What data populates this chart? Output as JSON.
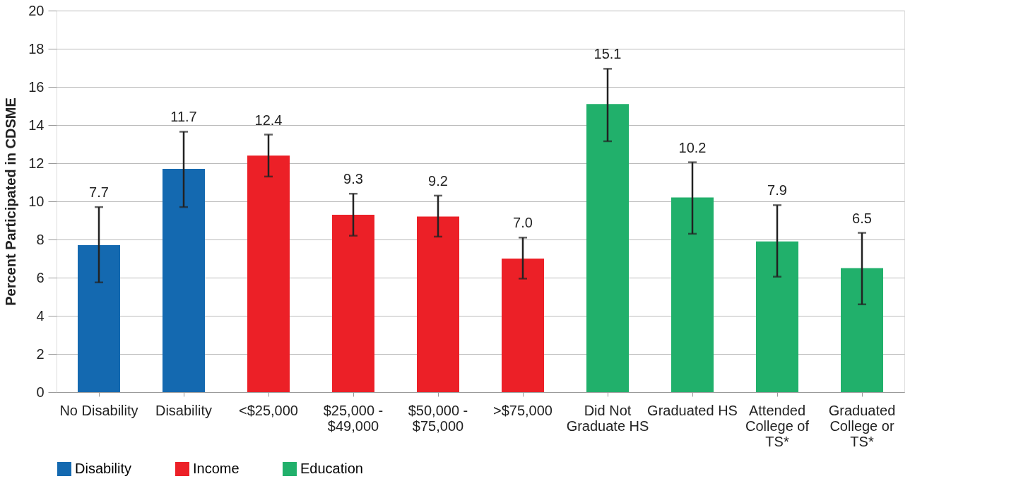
{
  "chart_data": {
    "type": "bar",
    "ylabel": "Percent Participated in CDSME",
    "categories": [
      "No Disability",
      "Disability",
      "<$25,000",
      "$25,000 - $49,000",
      "$50,000 - $75,000",
      ">$75,000",
      "Did Not Graduate HS",
      "Graduated HS",
      "Attended College of TS*",
      "Graduated College or TS*"
    ],
    "series": [
      {
        "name": "Disability",
        "color": "#1469b0",
        "values": [
          7.7,
          11.7,
          null,
          null,
          null,
          null,
          null,
          null,
          null,
          null
        ],
        "value_labels": [
          "7.7",
          "11.7",
          null,
          null,
          null,
          null,
          null,
          null,
          null,
          null
        ],
        "errors": [
          [
            5.75,
            9.7
          ],
          [
            9.7,
            13.65
          ],
          null,
          null,
          null,
          null,
          null,
          null,
          null,
          null
        ]
      },
      {
        "name": "Income",
        "color": "#ec2027",
        "values": [
          null,
          null,
          12.4,
          9.3,
          9.2,
          7.0,
          null,
          null,
          null,
          null
        ],
        "value_labels": [
          null,
          null,
          "12.4",
          "9.3",
          "9.2",
          "7.0",
          null,
          null,
          null,
          null
        ],
        "errors": [
          null,
          null,
          [
            11.3,
            13.5
          ],
          [
            8.2,
            10.4
          ],
          [
            8.15,
            10.3
          ],
          [
            5.95,
            8.1
          ],
          null,
          null,
          null,
          null
        ]
      },
      {
        "name": "Education",
        "color": "#21b06b",
        "values": [
          null,
          null,
          null,
          null,
          null,
          null,
          15.1,
          10.2,
          7.9,
          6.5
        ],
        "value_labels": [
          null,
          null,
          null,
          null,
          null,
          null,
          "15.1",
          "10.2",
          "7.9",
          "6.5"
        ],
        "errors": [
          null,
          null,
          null,
          null,
          null,
          null,
          [
            13.15,
            16.95
          ],
          [
            8.3,
            12.05
          ],
          [
            6.05,
            9.8
          ],
          [
            4.6,
            8.35
          ]
        ]
      }
    ],
    "ylim": [
      0,
      20
    ],
    "yticks": [
      0,
      2,
      4,
      6,
      8,
      10,
      12,
      14,
      16,
      18,
      20
    ],
    "grid": "y",
    "legend": "bottom"
  }
}
